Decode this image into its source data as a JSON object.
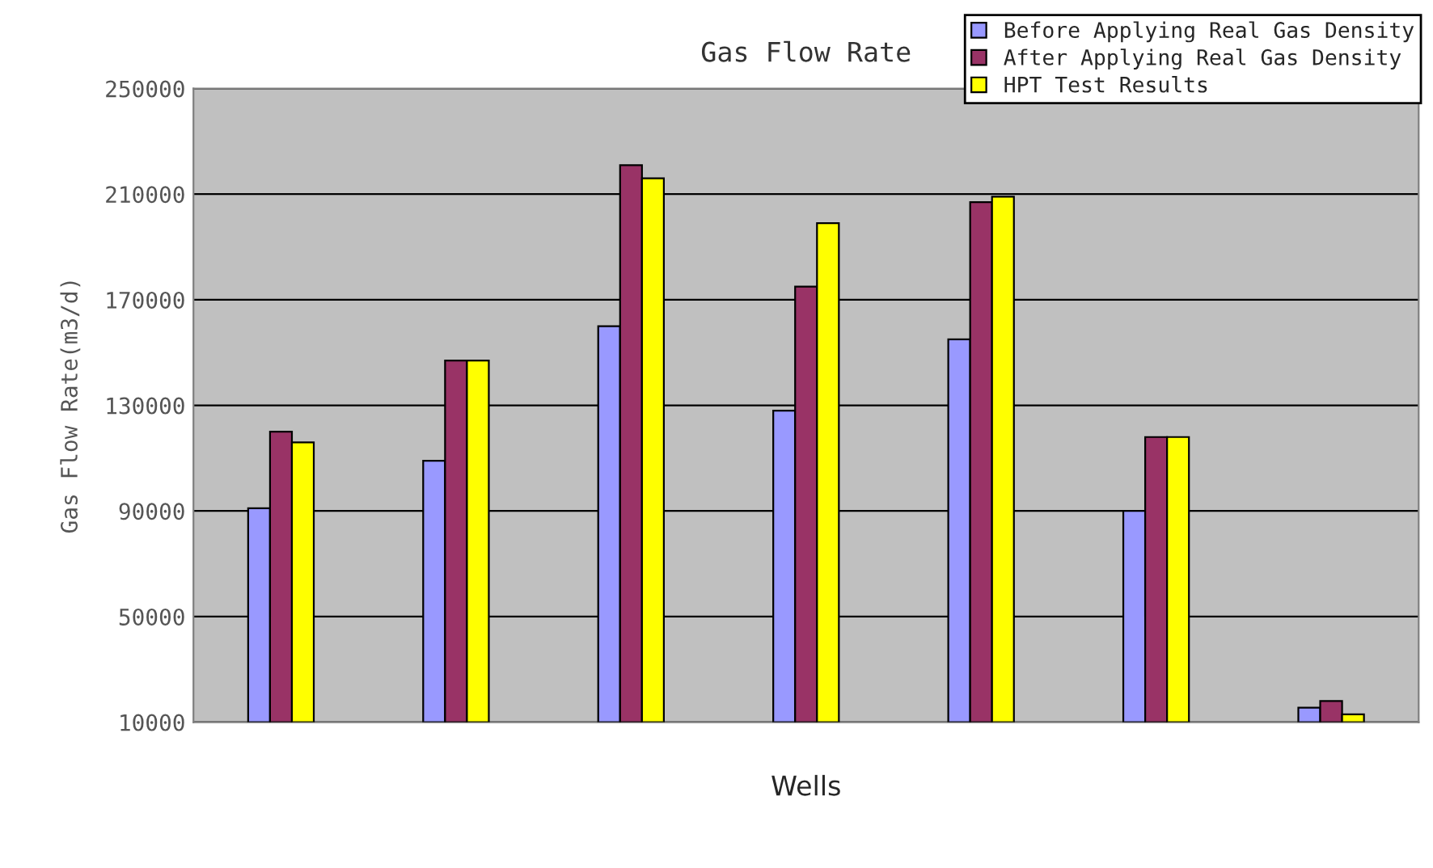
{
  "chart_data": {
    "type": "bar",
    "title": "Gas Flow Rate",
    "xlabel": "Wells",
    "ylabel": "Gas Flow Rate(m3/d)",
    "categories": [
      null,
      null,
      null,
      null,
      null,
      null,
      null
    ],
    "series": [
      {
        "name": "Before Applying Real Gas Density",
        "color": "#9999ff",
        "values": [
          91000,
          109000,
          160000,
          128000,
          155000,
          90000,
          15500
        ]
      },
      {
        "name": "After Applying Real Gas Density",
        "color": "#993366",
        "values": [
          120000,
          147000,
          221000,
          175000,
          207000,
          118000,
          18000
        ]
      },
      {
        "name": "HPT Test Results",
        "color": "#ffff00",
        "values": [
          116000,
          147000,
          216000,
          199000,
          209000,
          118000,
          13000
        ]
      }
    ],
    "ylim": [
      10000,
      250000
    ],
    "yticks": [
      10000,
      50000,
      90000,
      130000,
      170000,
      210000,
      250000
    ],
    "grid": "y",
    "legend": "top right"
  }
}
